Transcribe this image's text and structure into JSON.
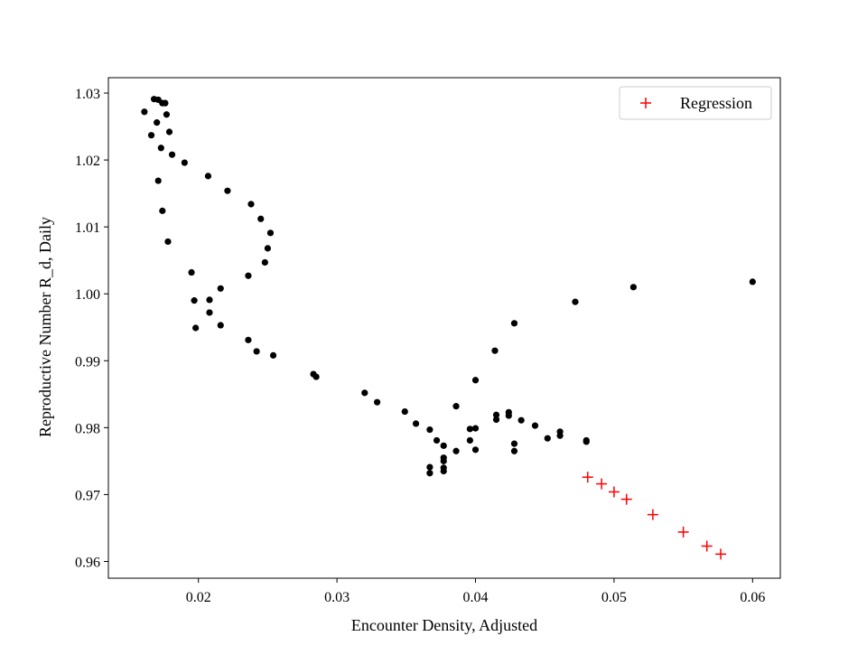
{
  "chart_data": {
    "type": "scatter",
    "title": "",
    "xlabel": "Encounter Density, Adjusted",
    "ylabel": "Reproductive Number R_d, Daily",
    "xlim": [
      0.0135,
      0.062
    ],
    "ylim": [
      0.9575,
      1.0323
    ],
    "xticks": [
      0.02,
      0.03,
      0.04,
      0.05,
      0.06
    ],
    "xtick_labels": [
      "0.02",
      "0.03",
      "0.04",
      "0.05",
      "0.06"
    ],
    "yticks": [
      0.96,
      0.97,
      0.98,
      0.99,
      1.0,
      1.01,
      1.02,
      1.03
    ],
    "ytick_labels": [
      "0.96",
      "0.97",
      "0.98",
      "0.99",
      "1.00",
      "1.01",
      "1.02",
      "1.03"
    ],
    "grid": false,
    "legend": {
      "position": "top-right",
      "entries": [
        "Regression"
      ]
    },
    "series": [
      {
        "marker": "dot",
        "color": "#000000",
        "points": [
          [
            0.0161,
            1.0272
          ],
          [
            0.0168,
            1.0291
          ],
          [
            0.0171,
            1.029
          ],
          [
            0.0174,
            1.0285
          ],
          [
            0.0176,
            1.0285
          ],
          [
            0.0177,
            1.0268
          ],
          [
            0.017,
            1.0256
          ],
          [
            0.0179,
            1.0242
          ],
          [
            0.0166,
            1.0237
          ],
          [
            0.0173,
            1.0218
          ],
          [
            0.0181,
            1.0208
          ],
          [
            0.019,
            1.0196
          ],
          [
            0.0171,
            1.0169
          ],
          [
            0.0207,
            1.0176
          ],
          [
            0.0221,
            1.0154
          ],
          [
            0.0238,
            1.0134
          ],
          [
            0.0174,
            1.0124
          ],
          [
            0.0245,
            1.0112
          ],
          [
            0.0252,
            1.0091
          ],
          [
            0.0178,
            1.0078
          ],
          [
            0.025,
            1.0068
          ],
          [
            0.0248,
            1.0047
          ],
          [
            0.0195,
            1.0032
          ],
          [
            0.0236,
            1.0027
          ],
          [
            0.0216,
            1.0008
          ],
          [
            0.0197,
            0.999
          ],
          [
            0.0208,
            0.9991
          ],
          [
            0.0208,
            0.9972
          ],
          [
            0.0216,
            0.9953
          ],
          [
            0.0198,
            0.9949
          ],
          [
            0.0236,
            0.9931
          ],
          [
            0.0242,
            0.9914
          ],
          [
            0.0254,
            0.9908
          ],
          [
            0.0283,
            0.988
          ],
          [
            0.0285,
            0.9876
          ],
          [
            0.032,
            0.9852
          ],
          [
            0.0329,
            0.9838
          ],
          [
            0.0349,
            0.9824
          ],
          [
            0.0357,
            0.9806
          ],
          [
            0.0367,
            0.9797
          ],
          [
            0.0372,
            0.9781
          ],
          [
            0.0377,
            0.9773
          ],
          [
            0.0377,
            0.9755
          ],
          [
            0.0377,
            0.975
          ],
          [
            0.0377,
            0.974
          ],
          [
            0.0377,
            0.9735
          ],
          [
            0.0367,
            0.9741
          ],
          [
            0.0367,
            0.9732
          ],
          [
            0.0386,
            0.9765
          ],
          [
            0.0396,
            0.9798
          ],
          [
            0.04,
            0.9799
          ],
          [
            0.0396,
            0.9781
          ],
          [
            0.04,
            0.9767
          ],
          [
            0.0386,
            0.9832
          ],
          [
            0.04,
            0.9871
          ],
          [
            0.0414,
            0.9915
          ],
          [
            0.0415,
            0.9819
          ],
          [
            0.0415,
            0.9812
          ],
          [
            0.0424,
            0.9823
          ],
          [
            0.0424,
            0.9818
          ],
          [
            0.0433,
            0.9811
          ],
          [
            0.0443,
            0.9803
          ],
          [
            0.0428,
            0.9776
          ],
          [
            0.0428,
            0.9765
          ],
          [
            0.0452,
            0.9784
          ],
          [
            0.0461,
            0.9794
          ],
          [
            0.0461,
            0.9788
          ],
          [
            0.048,
            0.9781
          ],
          [
            0.048,
            0.9779
          ],
          [
            0.0428,
            0.9956
          ],
          [
            0.0472,
            0.9988
          ],
          [
            0.0514,
            1.001
          ],
          [
            0.06,
            1.0018
          ]
        ]
      },
      {
        "name": "Regression",
        "marker": "plus",
        "color": "#ff0000",
        "points": [
          [
            0.0481,
            0.9726
          ],
          [
            0.0491,
            0.9716
          ],
          [
            0.05,
            0.9704
          ],
          [
            0.0509,
            0.9693
          ],
          [
            0.0528,
            0.967
          ],
          [
            0.055,
            0.9644
          ],
          [
            0.0567,
            0.9623
          ],
          [
            0.0577,
            0.9611
          ]
        ]
      }
    ]
  }
}
